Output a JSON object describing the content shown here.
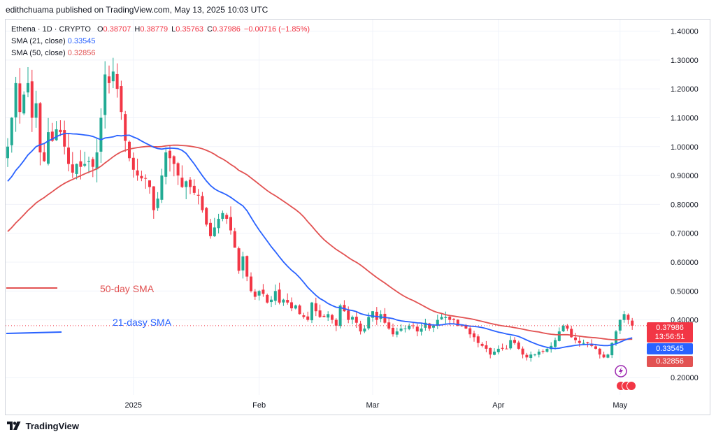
{
  "header": {
    "publisher_line": "edithchuama published on TradingView.com, May 13, 2025 10:03 UTC"
  },
  "legend": {
    "symbol": "Ethena · 1D · CRYPTO",
    "ohlc": {
      "o_label": "O",
      "o": "0.38707",
      "h_label": "H",
      "h": "0.38779",
      "l_label": "L",
      "l": "0.35763",
      "c_label": "C",
      "c": "0.37986",
      "change": "−0.00716 (−1.85%)"
    },
    "sma21_label": "SMA (21, close)",
    "sma21_value": "0.33545",
    "sma50_label": "SMA (50, close)",
    "sma50_value": "0.32856"
  },
  "colors": {
    "up": "#22ab94",
    "down": "#f23645",
    "sma21": "#2962ff",
    "sma50": "#e25252",
    "grid": "#f0f3fa"
  },
  "annotations": {
    "sma50_text": "50-day SMA",
    "sma21_text": "21-dasy SMA"
  },
  "price_tags": {
    "last": "0.37986",
    "countdown": "13:56:51",
    "sma21": "0.33545",
    "sma50": "0.32856"
  },
  "footer": {
    "brand": "TradingView",
    "logo_icon": "tradingview-logo-icon"
  },
  "chart_data": {
    "type": "candlestick",
    "title": "Ethena · 1D · CRYPTO",
    "y_axis_ticks": [
      "1.40000",
      "1.30000",
      "1.20000",
      "1.10000",
      "1.00000",
      "0.90000",
      "0.80000",
      "0.70000",
      "0.60000",
      "0.50000",
      "0.40000",
      "0.20000"
    ],
    "y_tick_values": [
      1.4,
      1.3,
      1.2,
      1.1,
      1.0,
      0.9,
      0.8,
      0.7,
      0.6,
      0.5,
      0.4,
      0.2
    ],
    "x_axis_ticks": [
      {
        "label": "2025",
        "date": "2025-01-01"
      },
      {
        "label": "Feb",
        "date": "2025-02-01"
      },
      {
        "label": "Mar",
        "date": "2025-03-01"
      },
      {
        "label": "Apr",
        "date": "2025-04-01"
      },
      {
        "label": "May",
        "date": "2025-05-01"
      }
    ],
    "x_start": "2024-12-01",
    "ylim": [
      0.14,
      1.44
    ],
    "grid": true,
    "close_prices": [
      1.0,
      1.1,
      1.22,
      1.12,
      1.18,
      1.22,
      1.1,
      1.15,
      0.98,
      0.95,
      1.05,
      1.02,
      1.06,
      1.05,
      1.0,
      0.94,
      0.91,
      0.94,
      0.93,
      0.94,
      0.95,
      0.93,
      0.98,
      1.1,
      1.25,
      1.22,
      1.26,
      1.2,
      1.12,
      1.02,
      0.96,
      0.92,
      0.9,
      0.89,
      0.89,
      0.86,
      0.78,
      0.82,
      0.9,
      0.98,
      0.96,
      0.94,
      0.9,
      0.86,
      0.88,
      0.86,
      0.84,
      0.83,
      0.78,
      0.73,
      0.69,
      0.72,
      0.75,
      0.77,
      0.75,
      0.71,
      0.65,
      0.57,
      0.62,
      0.55,
      0.5,
      0.48,
      0.5,
      0.49,
      0.46,
      0.47,
      0.5,
      0.46,
      0.47,
      0.46,
      0.44,
      0.45,
      0.42,
      0.41,
      0.4,
      0.46,
      0.43,
      0.41,
      0.41,
      0.42,
      0.4,
      0.38,
      0.45,
      0.43,
      0.4,
      0.41,
      0.39,
      0.36,
      0.37,
      0.41,
      0.43,
      0.4,
      0.42,
      0.39,
      0.37,
      0.35,
      0.36,
      0.37,
      0.37,
      0.38,
      0.38,
      0.36,
      0.37,
      0.39,
      0.37,
      0.38,
      0.4,
      0.41,
      0.41,
      0.4,
      0.4,
      0.38,
      0.38,
      0.37,
      0.35,
      0.34,
      0.32,
      0.31,
      0.3,
      0.28,
      0.29,
      0.3,
      0.3,
      0.3,
      0.33,
      0.32,
      0.3,
      0.28,
      0.27,
      0.28,
      0.28,
      0.29,
      0.29,
      0.3,
      0.31,
      0.33,
      0.36,
      0.38,
      0.37,
      0.34,
      0.33,
      0.32,
      0.32,
      0.32,
      0.31,
      0.3,
      0.28,
      0.27,
      0.28,
      0.32,
      0.36,
      0.4,
      0.42,
      0.4,
      0.38
    ],
    "series": [
      {
        "name": "SMA (21, close)",
        "last_value": 0.33545
      },
      {
        "name": "SMA (50, close)",
        "last_value": 0.32856
      }
    ]
  }
}
